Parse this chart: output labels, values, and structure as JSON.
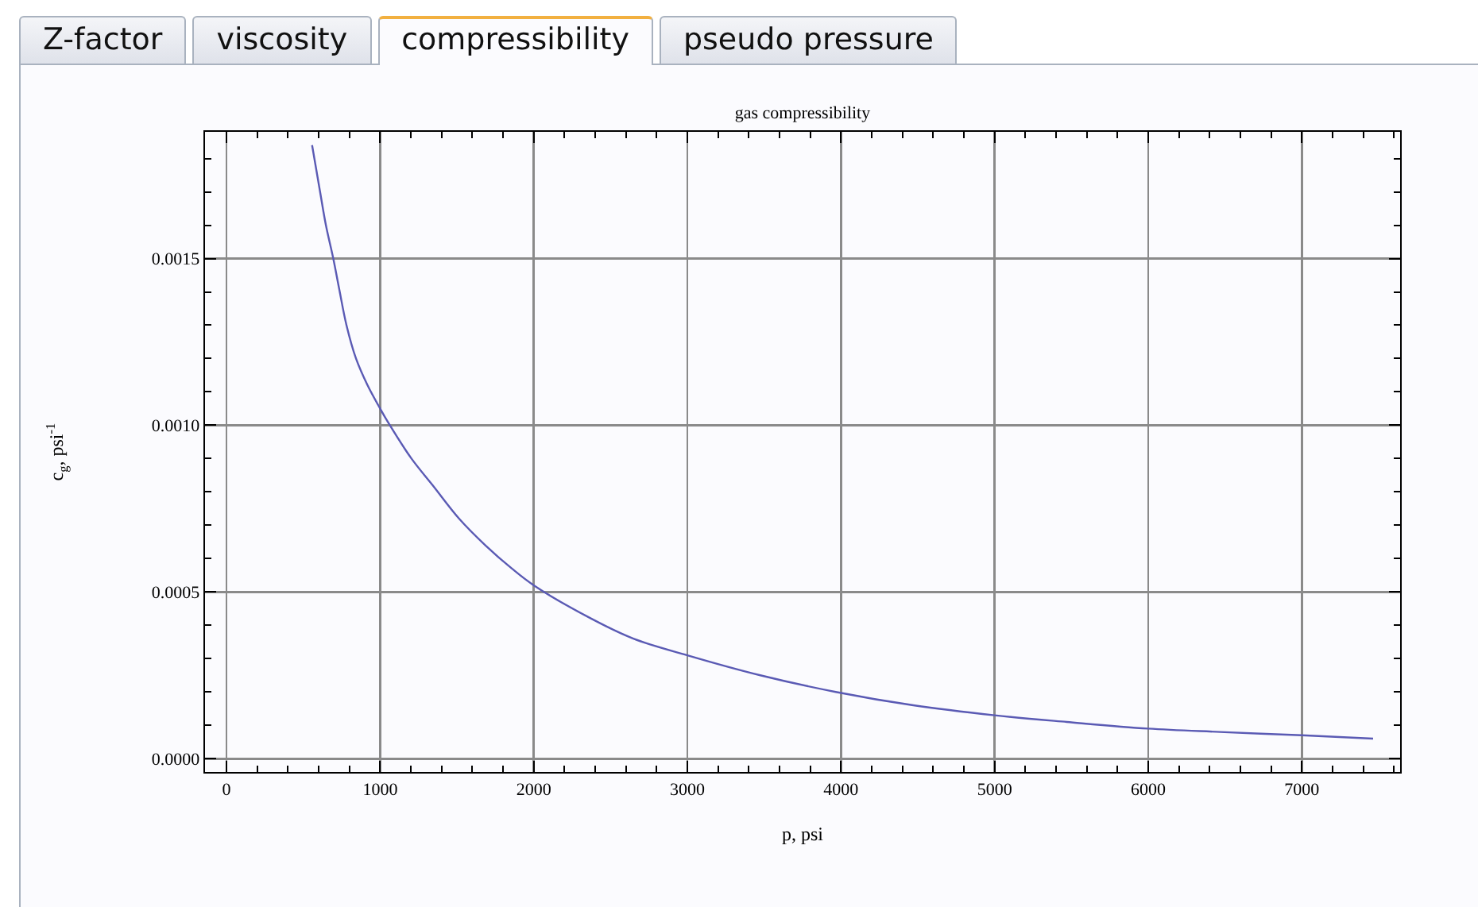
{
  "chart_data": {
    "type": "line",
    "title": "gas compressibility",
    "xlabel": "p, psi",
    "ylabel": "c$_{g}$, psi$^{-1}$",
    "annotations": [
      "Z-factor",
      "viscosity",
      "compressibility",
      "pseudo pressure"
    ],
    "x": [
      557,
      609,
      647,
      695,
      733,
      781,
      843,
      918,
      1000,
      1050,
      1204,
      1342,
      1514,
      1685,
      1858,
      2000,
      2374,
      2649,
      3000,
      3475,
      3966,
      4471,
      5000,
      5470,
      6000,
      6468,
      7000,
      7464
    ],
    "series": [
      {
        "color": "#5a5ab4",
        "values": [
          0.00184,
          0.0017,
          0.0016,
          0.0015,
          0.00141,
          0.0013,
          0.0012,
          0.00112,
          0.00105,
          0.00101,
          0.0009,
          0.00082,
          0.00072,
          0.00064,
          0.00057,
          0.00052,
          0.00042,
          0.00036,
          0.00031,
          0.00025,
          0.0002,
          0.00016,
          0.00013,
          0.00011,
          9e-05,
          8e-05,
          7e-05,
          6e-05
        ]
      }
    ],
    "xlim": [
      -140,
      7640
    ],
    "ylim": [
      -4e-05,
      0.00188
    ],
    "xticks": [
      0,
      1000,
      2000,
      3000,
      4000,
      5000,
      6000,
      7000
    ],
    "yticks": [
      {
        "value": 0,
        "label": "0.0000"
      },
      {
        "value": 0.0005,
        "label": "0.0005"
      },
      {
        "value": 0.001,
        "label": "0.0010"
      },
      {
        "value": 0.0015,
        "label": "0.0015"
      }
    ],
    "grid": true
  }
}
